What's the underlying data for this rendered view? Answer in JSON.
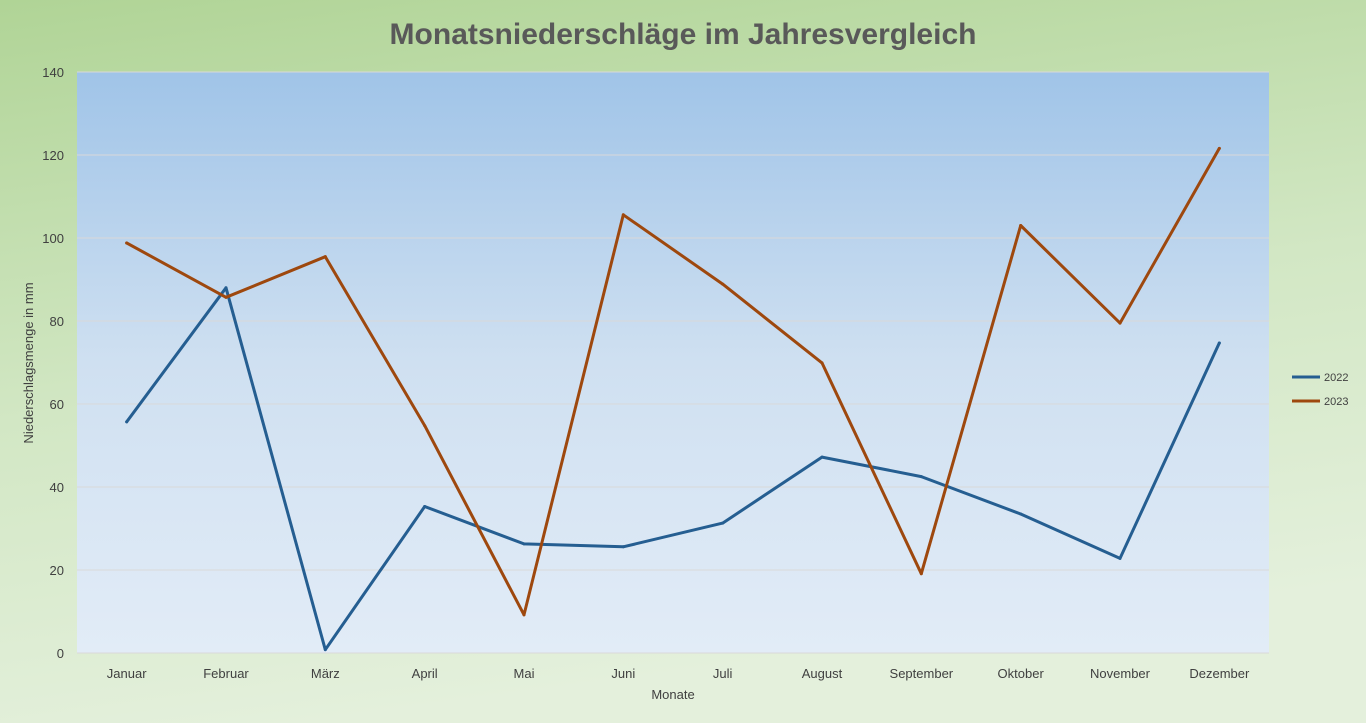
{
  "chart_data": {
    "type": "line",
    "title": "Monatsniederschläge im Jahresvergleich",
    "xlabel": "Monate",
    "ylabel": "Niederschlagsmenge in mm",
    "ylim": [
      0,
      140
    ],
    "y_ticks": [
      "0",
      "20",
      "40",
      "60",
      "80",
      "100",
      "120",
      "140"
    ],
    "categories": [
      "Januar",
      "Februar",
      "März",
      "April",
      "Mai",
      "Juni",
      "Juli",
      "August",
      "September",
      "Oktober",
      "November",
      "Dezember"
    ],
    "grid": true,
    "legend_position": "right",
    "series": [
      {
        "name": "2022",
        "color": "#255E91",
        "values": [
          55.7,
          88.0,
          0.8,
          35.3,
          26.3,
          25.6,
          31.3,
          47.2,
          42.5,
          33.5,
          22.8,
          74.7
        ]
      },
      {
        "name": "2023",
        "color": "#9E480E",
        "values": [
          98.8,
          85.7,
          95.5,
          54.8,
          9.2,
          105.6,
          88.9,
          69.9,
          19.1,
          103.0,
          79.5,
          121.6
        ]
      }
    ]
  }
}
